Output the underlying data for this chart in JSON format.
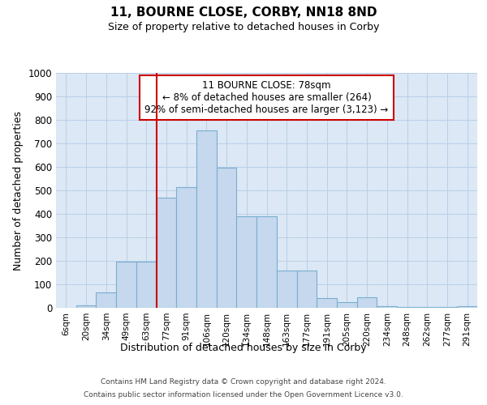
{
  "title": "11, BOURNE CLOSE, CORBY, NN18 8ND",
  "subtitle": "Size of property relative to detached houses in Corby",
  "xlabel": "Distribution of detached houses by size in Corby",
  "ylabel": "Number of detached properties",
  "categories": [
    "6sqm",
    "20sqm",
    "34sqm",
    "49sqm",
    "63sqm",
    "77sqm",
    "91sqm",
    "106sqm",
    "120sqm",
    "134sqm",
    "148sqm",
    "163sqm",
    "177sqm",
    "191sqm",
    "205sqm",
    "220sqm",
    "234sqm",
    "248sqm",
    "262sqm",
    "277sqm",
    "291sqm"
  ],
  "values": [
    0,
    10,
    65,
    195,
    195,
    470,
    515,
    755,
    595,
    390,
    390,
    160,
    160,
    40,
    25,
    45,
    8,
    3,
    3,
    3,
    8
  ],
  "bar_color": "#c5d8ed",
  "bar_edge_color": "#7aaed0",
  "vline_color": "#cc0000",
  "annotation_text": "11 BOURNE CLOSE: 78sqm\n← 8% of detached houses are smaller (264)\n92% of semi-detached houses are larger (3,123) →",
  "annotation_box_color": "#ffffff",
  "annotation_box_edge": "#cc0000",
  "ylim": [
    0,
    1000
  ],
  "yticks": [
    0,
    100,
    200,
    300,
    400,
    500,
    600,
    700,
    800,
    900,
    1000
  ],
  "footnote_line1": "Contains HM Land Registry data © Crown copyright and database right 2024.",
  "footnote_line2": "Contains public sector information licensed under the Open Government Licence v3.0.",
  "bg_color": "#ffffff",
  "plot_bg_color": "#dce8f5",
  "grid_color": "#b8cfe8"
}
